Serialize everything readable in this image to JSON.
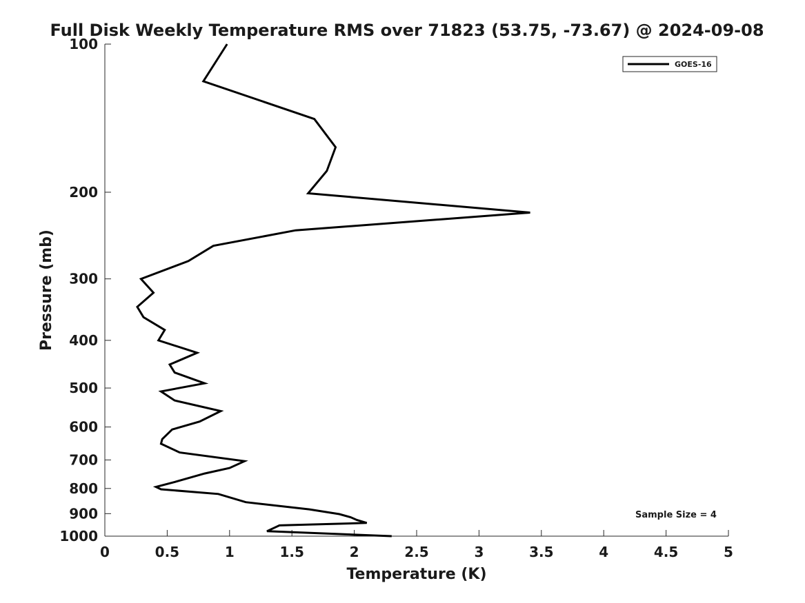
{
  "chart_data": {
    "type": "line",
    "title": "Full Disk Weekly Temperature RMS over 71823 (53.75, -73.67) @ 2024-09-08",
    "xlabel": "Temperature (K)",
    "ylabel": "Pressure (mb)",
    "xlim": [
      0,
      5
    ],
    "ylim": [
      100,
      1000
    ],
    "y_scale": "log",
    "y_reversed": true,
    "x_ticks": [
      0,
      0.5,
      1,
      1.5,
      2,
      2.5,
      3,
      3.5,
      4,
      4.5,
      5
    ],
    "x_tick_labels": [
      "0",
      "0.5",
      "1",
      "1.5",
      "2",
      "2.5",
      "3",
      "3.5",
      "4",
      "4.5",
      "5"
    ],
    "y_ticks": [
      100,
      200,
      300,
      400,
      500,
      600,
      700,
      800,
      900,
      1000
    ],
    "y_tick_labels": [
      "100",
      "200",
      "300",
      "400",
      "500",
      "600",
      "700",
      "800",
      "900",
      "1000"
    ],
    "grid": false,
    "legend_position": "top-right",
    "series": [
      {
        "name": "GOES-16",
        "color": "#000000",
        "x": [
          0.98,
          0.79,
          1.68,
          1.85,
          1.78,
          1.63,
          3.41,
          1.53,
          0.87,
          0.67,
          0.29,
          0.39,
          0.26,
          0.31,
          0.48,
          0.43,
          0.74,
          0.52,
          0.56,
          0.8,
          0.45,
          0.56,
          0.93,
          0.76,
          0.54,
          0.46,
          0.45,
          0.6,
          1.12,
          1.0,
          0.8,
          0.56,
          0.41,
          0.45,
          0.91,
          1.13,
          1.64,
          1.88,
          1.97,
          2.02,
          2.1,
          1.4,
          1.3,
          2.3
        ],
        "y": [
          100,
          119,
          142,
          162,
          181,
          201,
          220,
          239,
          257,
          276,
          300,
          320,
          342,
          359,
          381,
          400,
          424,
          448,
          465,
          489,
          508,
          530,
          557,
          585,
          607,
          635,
          649,
          676,
          704,
          727,
          746,
          776,
          794,
          803,
          821,
          853,
          882,
          902,
          915,
          927,
          940,
          951,
          977,
          1000
        ]
      }
    ],
    "annotations": [
      "Sample Size = 4"
    ]
  }
}
